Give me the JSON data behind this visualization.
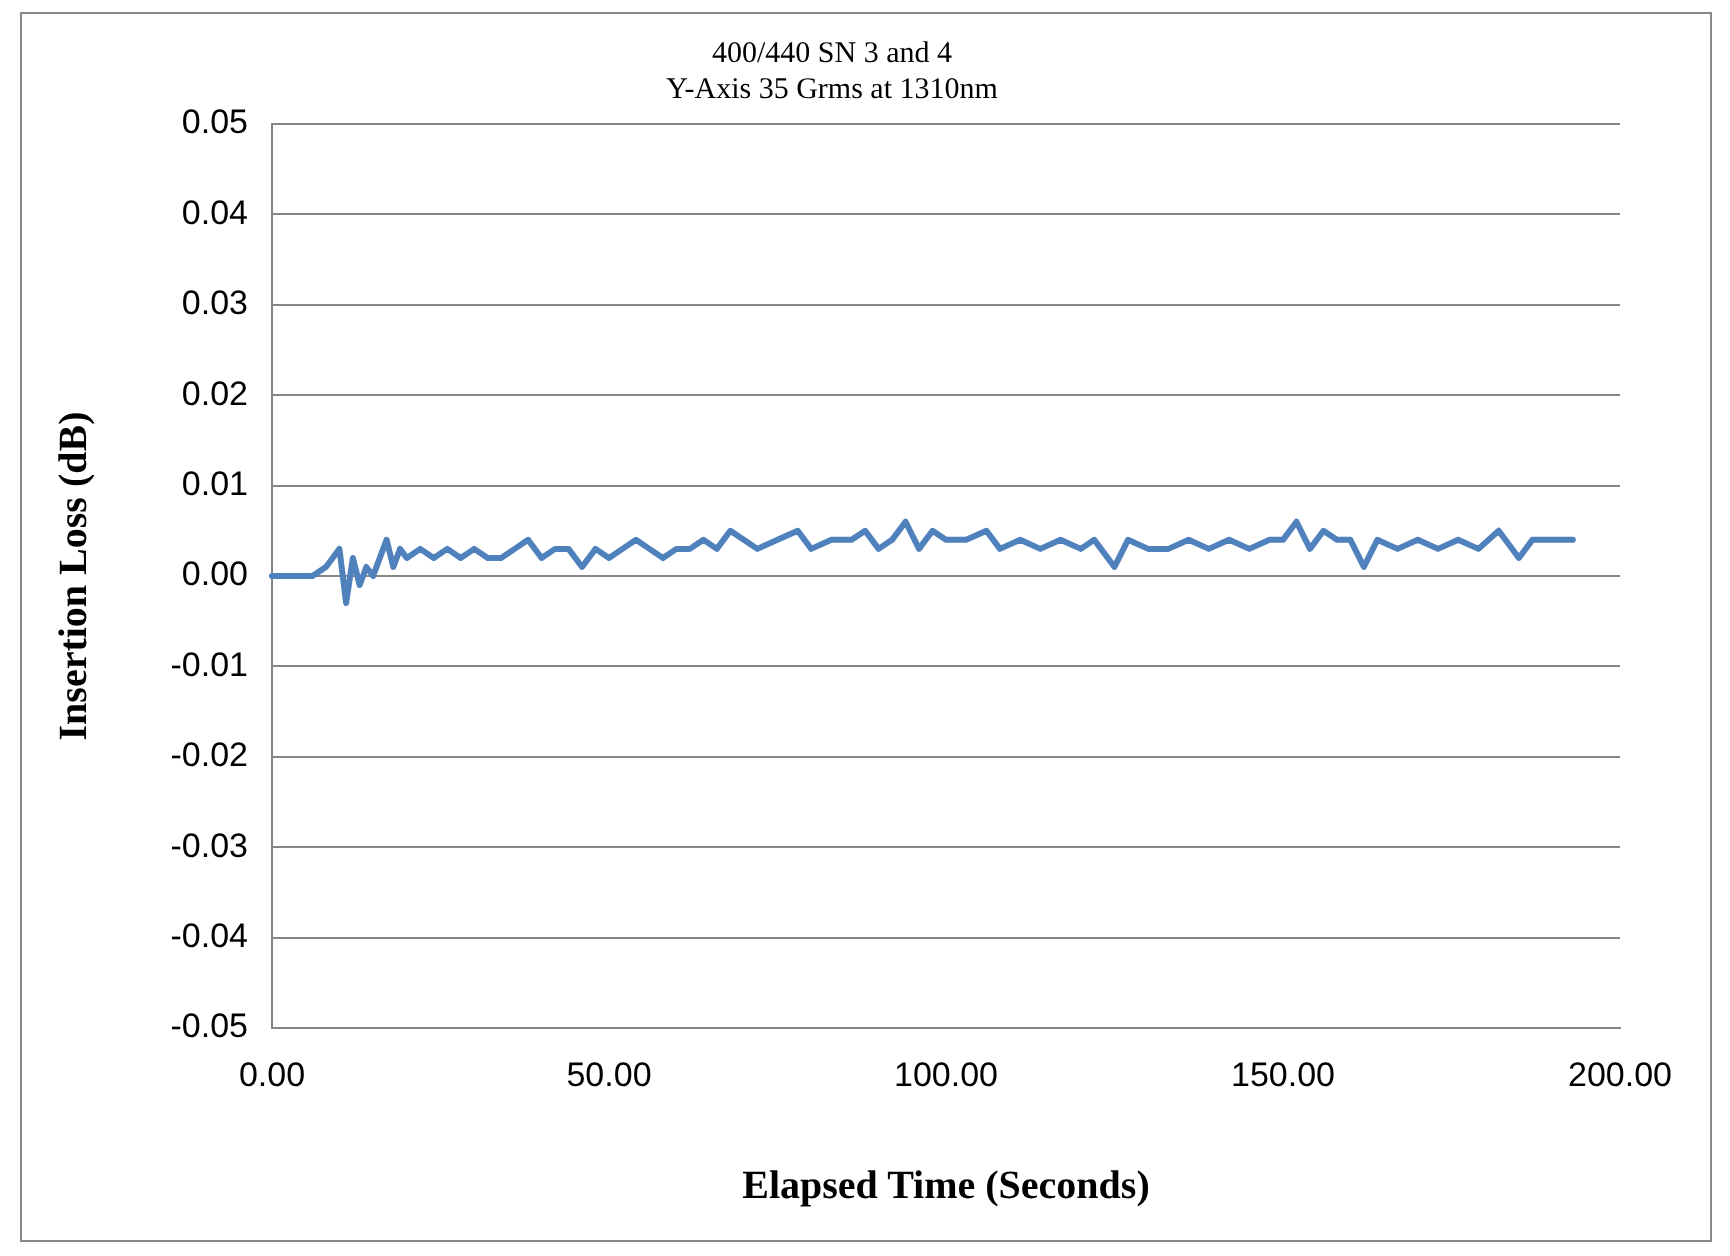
{
  "chart_data": {
    "type": "line",
    "title": "400/440 SN 3 and 4\nY-Axis 35 Grms at 1310nm",
    "xlabel": "Elapsed Time (Seconds)",
    "ylabel": "Insertion Loss (dB)",
    "xlim": [
      0,
      200
    ],
    "xticks": [
      {
        "value": 0,
        "label": "0.00"
      },
      {
        "value": 50,
        "label": "50.00"
      },
      {
        "value": 100,
        "label": "100.00"
      },
      {
        "value": 150,
        "label": "150.00"
      },
      {
        "value": 200,
        "label": "200.00"
      }
    ],
    "ylim": [
      -0.05,
      0.05
    ],
    "yticks": [
      {
        "value": -0.05,
        "label": "-0.05"
      },
      {
        "value": -0.04,
        "label": "-0.04"
      },
      {
        "value": -0.03,
        "label": "-0.03"
      },
      {
        "value": -0.02,
        "label": "-0.02"
      },
      {
        "value": -0.01,
        "label": "-0.01"
      },
      {
        "value": 0,
        "label": "0.00"
      },
      {
        "value": 0.01,
        "label": "0.01"
      },
      {
        "value": 0.02,
        "label": "0.02"
      },
      {
        "value": 0.03,
        "label": "0.03"
      },
      {
        "value": 0.04,
        "label": "0.04"
      },
      {
        "value": 0.05,
        "label": "0.05"
      }
    ],
    "grid": "y",
    "legend": false,
    "marker": "none",
    "line_style": "solid",
    "x": [
      0,
      2,
      4,
      6,
      8,
      9,
      10,
      11,
      12,
      13,
      14,
      15,
      16,
      17,
      18,
      19,
      20,
      22,
      24,
      26,
      28,
      30,
      32,
      34,
      36,
      38,
      40,
      42,
      44,
      46,
      48,
      50,
      52,
      54,
      56,
      58,
      60,
      62,
      64,
      66,
      68,
      70,
      72,
      75,
      78,
      80,
      83,
      86,
      88,
      90,
      92,
      94,
      96,
      98,
      100,
      103,
      106,
      108,
      111,
      114,
      117,
      120,
      122,
      125,
      127,
      130,
      133,
      136,
      139,
      142,
      145,
      148,
      150,
      152,
      154,
      156,
      158,
      160,
      162,
      164,
      167,
      170,
      173,
      176,
      179,
      182,
      185,
      187,
      190,
      193
    ],
    "series": [
      {
        "color": "#4f81bd",
        "values": [
          0,
          0,
          0,
          0,
          0.001,
          0.002,
          0.003,
          -0.003,
          0.002,
          -0.001,
          0.001,
          0,
          0.002,
          0.004,
          0.001,
          0.003,
          0.002,
          0.003,
          0.002,
          0.003,
          0.002,
          0.003,
          0.002,
          0.002,
          0.003,
          0.004,
          0.002,
          0.003,
          0.003,
          0.001,
          0.003,
          0.002,
          0.003,
          0.004,
          0.003,
          0.002,
          0.003,
          0.003,
          0.004,
          0.003,
          0.005,
          0.004,
          0.003,
          0.004,
          0.005,
          0.003,
          0.004,
          0.004,
          0.005,
          0.003,
          0.004,
          0.006,
          0.003,
          0.005,
          0.004,
          0.004,
          0.005,
          0.003,
          0.004,
          0.003,
          0.004,
          0.003,
          0.004,
          0.001,
          0.004,
          0.003,
          0.003,
          0.004,
          0.003,
          0.004,
          0.003,
          0.004,
          0.004,
          0.006,
          0.003,
          0.005,
          0.004,
          0.004,
          0.001,
          0.004,
          0.003,
          0.004,
          0.003,
          0.004,
          0.003,
          0.005,
          0.002,
          0.004,
          0.004,
          0.004
        ]
      }
    ]
  }
}
